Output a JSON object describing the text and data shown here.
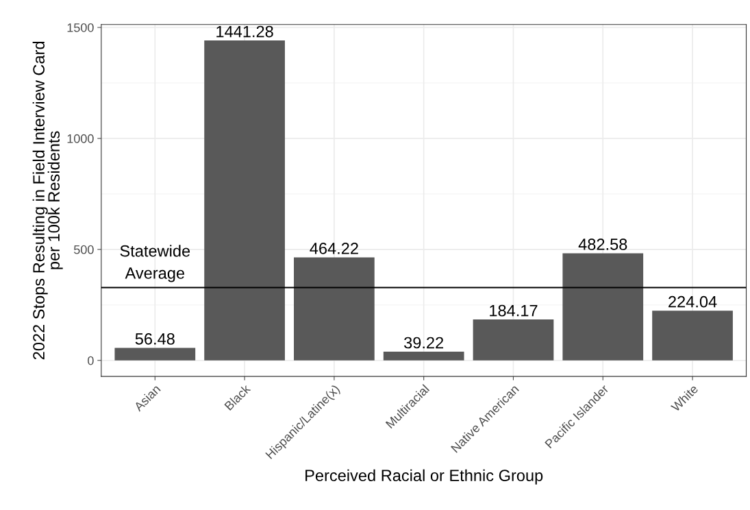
{
  "chart_data": {
    "type": "bar",
    "xlabel": "Perceived Racial or Ethnic Group",
    "ylabel": "2022 Stops Resulting in Field Interview Card\nper 100k Residents",
    "categories": [
      "Asian",
      "Black",
      "Hispanic/Latine(x)",
      "Multiracial",
      "Native American",
      "Pacific Islander",
      "White"
    ],
    "values": [
      56.48,
      1441.28,
      464.22,
      39.22,
      184.17,
      482.58,
      224.04
    ],
    "color": "#595959",
    "data_labels": true,
    "ylim": [
      -72.06,
      1513.34
    ],
    "yticks": [
      0,
      500,
      1000,
      1500
    ],
    "grid": true,
    "ref_lines": [
      {
        "axis": "y",
        "value": 328,
        "label": "Statewide\nAverage",
        "color": "#000000"
      }
    ]
  }
}
